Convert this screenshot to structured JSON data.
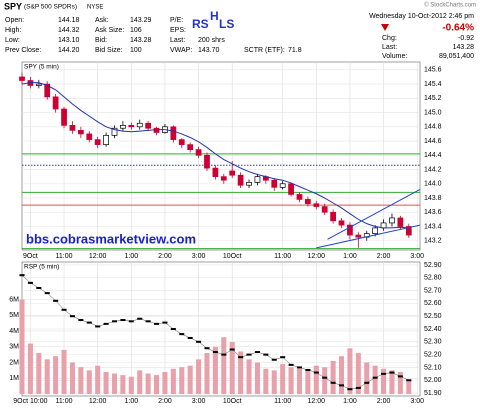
{
  "header": {
    "symbol": "SPY",
    "name": "(S&P 500 SPDRs)",
    "exchange": "NYSE",
    "columns": [
      [
        {
          "label": "Open:",
          "value": "144.18"
        },
        {
          "label": "High:",
          "value": "144.32"
        },
        {
          "label": "Low:",
          "value": "143.10"
        },
        {
          "label": "Prev Close:",
          "value": "144.20"
        }
      ],
      [
        {
          "label": "Ask:",
          "value": "143.29"
        },
        {
          "label": "Ask Size:",
          "value": "106"
        },
        {
          "label": "Bid:",
          "value": "143.28"
        },
        {
          "label": "Bid Size:",
          "value": "100"
        }
      ],
      [
        {
          "label": "P/E:"
        },
        {
          "label": "EPS:"
        },
        {
          "label": "Last:",
          "value": "200 shrs"
        },
        {
          "label": "VWAP:",
          "value": "143.70"
        }
      ]
    ],
    "sctr": {
      "label": "SCTR (ETF):",
      "value": "71.8"
    },
    "pattern": [
      "RS",
      "H",
      "LS"
    ],
    "timestamp": "Wednesday 10-Oct-2012 2:46 pm",
    "change_pct": "-0.64%",
    "stats": [
      {
        "label": "Chg:",
        "value": "-0.92"
      },
      {
        "label": "Last:",
        "value": "143.28"
      },
      {
        "label": "Volume:",
        "value": "89,051,400"
      }
    ],
    "copyright": "© StockCharts.com"
  },
  "chart_data": [
    {
      "type": "candlestick",
      "title": "SPY (5 min)",
      "annotation": "bbs.cobrasmarketview.com",
      "up_color": "#000000",
      "down_color": "#cc0033",
      "grid": true,
      "x": [
        3,
        6,
        9,
        12,
        15,
        18,
        21,
        24,
        27,
        30,
        33,
        36,
        39,
        42,
        45,
        48,
        51,
        54,
        57,
        60,
        63,
        66,
        69,
        72,
        75,
        78,
        81,
        84,
        87,
        90,
        93,
        96,
        99,
        102,
        105,
        108,
        111,
        114,
        117,
        120,
        123,
        126,
        129,
        132,
        135,
        138,
        141
      ],
      "open": [
        145.5,
        145.45,
        145.38,
        145.4,
        145.22,
        145.05,
        144.82,
        144.75,
        144.7,
        144.62,
        144.55,
        144.68,
        144.78,
        144.82,
        144.8,
        144.85,
        144.78,
        144.72,
        144.8,
        144.62,
        144.55,
        144.48,
        144.4,
        144.22,
        144.1,
        144.18,
        144.12,
        143.98,
        144.02,
        144.1,
        144.05,
        143.95,
        144.0,
        143.85,
        143.78,
        143.72,
        143.68,
        143.6,
        143.48,
        143.42,
        143.28,
        143.25,
        143.3,
        143.38,
        143.45,
        143.52,
        143.4
      ],
      "high": [
        145.56,
        145.5,
        145.46,
        145.44,
        145.26,
        145.08,
        144.88,
        144.8,
        144.74,
        144.66,
        144.72,
        144.82,
        144.88,
        144.86,
        144.9,
        144.88,
        144.8,
        144.84,
        144.82,
        144.64,
        144.58,
        144.52,
        144.44,
        144.26,
        144.14,
        144.32,
        144.16,
        144.06,
        144.14,
        144.12,
        144.08,
        144.04,
        144.02,
        143.88,
        143.82,
        143.76,
        143.72,
        143.64,
        143.52,
        143.46,
        143.32,
        143.34,
        143.42,
        143.5,
        143.58,
        143.55,
        143.44
      ],
      "low": [
        145.4,
        145.34,
        145.34,
        145.18,
        145.0,
        144.78,
        144.7,
        144.64,
        144.58,
        144.5,
        144.52,
        144.64,
        144.74,
        144.76,
        144.76,
        144.74,
        144.68,
        144.7,
        144.58,
        144.5,
        144.44,
        144.36,
        144.18,
        144.06,
        144.0,
        144.08,
        143.94,
        143.94,
        143.98,
        144.0,
        143.9,
        143.92,
        143.82,
        143.74,
        143.68,
        143.64,
        143.56,
        143.44,
        143.38,
        143.22,
        143.1,
        143.2,
        143.26,
        143.34,
        143.4,
        143.36,
        143.24
      ],
      "close": [
        145.45,
        145.38,
        145.4,
        145.22,
        145.05,
        144.82,
        144.75,
        144.7,
        144.62,
        144.55,
        144.68,
        144.78,
        144.82,
        144.8,
        144.85,
        144.78,
        144.72,
        144.8,
        144.62,
        144.55,
        144.48,
        144.4,
        144.22,
        144.1,
        144.05,
        144.12,
        143.98,
        144.02,
        144.1,
        144.05,
        143.95,
        144.0,
        143.85,
        143.78,
        143.72,
        143.68,
        143.6,
        143.48,
        143.42,
        143.28,
        143.25,
        143.3,
        143.38,
        143.45,
        143.52,
        143.4,
        143.28
      ],
      "series": [
        {
          "color": "#2233aa",
          "values": [
            145.4,
            145.42,
            145.42,
            145.38,
            145.32,
            145.22,
            145.12,
            145.03,
            144.95,
            144.87,
            144.8,
            144.76,
            144.74,
            144.73,
            144.74,
            144.75,
            144.76,
            144.76,
            144.74,
            144.7,
            144.65,
            144.59,
            144.51,
            144.42,
            144.34,
            144.28,
            144.22,
            144.17,
            144.13,
            144.1,
            144.07,
            144.05,
            144.01,
            143.96,
            143.91,
            143.86,
            143.8,
            143.73,
            143.66,
            143.58,
            143.5,
            143.44,
            143.4,
            143.38,
            143.38,
            143.39,
            143.38
          ]
        }
      ],
      "levels": [
        {
          "value": 144.42,
          "color": "#33aa33"
        },
        {
          "value": 144.26,
          "color": "#334488",
          "style": "dotted"
        },
        {
          "value": 143.88,
          "color": "#33aa33"
        },
        {
          "value": 143.7,
          "color": "#e05050"
        },
        {
          "value": 143.09,
          "color": "#33aa33"
        }
      ],
      "trendlines": [
        {
          "color": "#2244cc",
          "x": [
            112,
            145
          ],
          "y": [
            143.22,
            143.92
          ]
        },
        {
          "color": "#2244cc",
          "x": [
            108,
            145
          ],
          "y": [
            143.1,
            143.42
          ]
        }
      ],
      "xlim": [
        3,
        145
      ],
      "ylim": [
        143.07,
        145.71
      ],
      "xticks": [
        {
          "value": 6,
          "label": "9Oct"
        },
        {
          "value": 18,
          "label": "11:00"
        },
        {
          "value": 30,
          "label": "12:00"
        },
        {
          "value": 42,
          "label": "1:00"
        },
        {
          "value": 54,
          "label": "2:00"
        },
        {
          "value": 66,
          "label": "3:00"
        },
        {
          "value": 78,
          "label": "10Oct"
        },
        {
          "value": 96,
          "label": "11:00"
        },
        {
          "value": 108,
          "label": "12:00"
        },
        {
          "value": 120,
          "label": "1:00"
        },
        {
          "value": 132,
          "label": "2:00"
        },
        {
          "value": 144,
          "label": "3:00"
        }
      ],
      "yticks": [
        143.2,
        143.4,
        143.6,
        143.8,
        {
          "value": 144,
          "label": "144.0"
        },
        144.2,
        144.4,
        144.6,
        144.8,
        {
          "value": 145,
          "label": "145.0"
        },
        145.2,
        145.4,
        145.6
      ]
    },
    {
      "type": "combo",
      "title": "RSP (5 min)",
      "grid": true,
      "x": [
        3,
        6,
        9,
        12,
        15,
        18,
        21,
        24,
        27,
        30,
        33,
        36,
        39,
        42,
        45,
        48,
        51,
        54,
        57,
        60,
        63,
        66,
        69,
        72,
        75,
        78,
        81,
        84,
        87,
        90,
        93,
        96,
        99,
        102,
        105,
        108,
        111,
        114,
        117,
        120,
        123,
        126,
        129,
        132,
        135,
        138,
        141
      ],
      "series": [
        {
          "color": "#e8a0aa",
          "values": [
            6000000,
            3200000,
            2600000,
            2200000,
            2400000,
            2800000,
            2000000,
            1700000,
            1500000,
            1800000,
            1400000,
            1300000,
            1200000,
            1100000,
            1500000,
            1300000,
            1200000,
            1400000,
            1600000,
            1700000,
            1800000,
            2200000,
            2600000,
            3000000,
            3600000,
            3300000,
            2700000,
            2200000,
            2000000,
            1600000,
            1500000,
            1900000,
            1700000,
            1600000,
            1500000,
            1800000,
            1700000,
            2100000,
            2400000,
            2900000,
            2600000,
            2000000,
            1800000,
            1600000,
            1500000,
            1400000,
            900000
          ]
        },
        {
          "color": "#000000",
          "axis": "y2",
          "values": [
            52.82,
            52.76,
            52.72,
            52.68,
            52.62,
            52.55,
            52.5,
            52.47,
            52.45,
            52.42,
            52.44,
            52.46,
            52.47,
            52.46,
            52.48,
            52.46,
            52.44,
            52.45,
            52.4,
            52.36,
            52.33,
            52.3,
            52.25,
            52.22,
            52.2,
            52.24,
            52.18,
            52.2,
            52.22,
            52.2,
            52.16,
            52.18,
            52.12,
            52.1,
            52.08,
            52.06,
            52.02,
            51.98,
            51.96,
            51.93,
            51.94,
            51.98,
            52.02,
            52.05,
            52.06,
            52.03,
            52.0
          ]
        }
      ],
      "xlim": [
        3,
        145
      ],
      "ylim": [
        -125000,
        8375000
      ],
      "y2lim": [
        51.877,
        52.923
      ],
      "xticks": [
        {
          "value": 6,
          "label": "9Oct 10:00"
        },
        {
          "value": 18,
          "label": "11:00"
        },
        {
          "value": 30,
          "label": "12:00"
        },
        {
          "value": 42,
          "label": "1:00"
        },
        {
          "value": 54,
          "label": "2:00"
        },
        {
          "value": 66,
          "label": "3:00"
        },
        {
          "value": 78,
          "label": "10Oct"
        },
        {
          "value": 96,
          "label": "11:00"
        },
        {
          "value": 108,
          "label": "12:00"
        },
        {
          "value": 120,
          "label": "1:00"
        },
        {
          "value": 132,
          "label": "2:00"
        },
        {
          "value": 144,
          "label": "3:00"
        }
      ],
      "yticks": [
        {
          "value": 1000000,
          "label": "1M"
        },
        {
          "value": 2000000,
          "label": "2M"
        },
        {
          "value": 3000000,
          "label": "3M"
        },
        {
          "value": 4000000,
          "label": "4M"
        },
        {
          "value": 5000000,
          "label": "5M"
        },
        {
          "value": 6000000,
          "label": "6M"
        }
      ],
      "y2ticks": [
        {
          "value": 51.9,
          "label": "51.90"
        },
        {
          "value": 52,
          "label": "52.00"
        },
        {
          "value": 52.1,
          "label": "52.10"
        },
        {
          "value": 52.2,
          "label": "52.20"
        },
        {
          "value": 52.3,
          "label": "52.30"
        },
        {
          "value": 52.4,
          "label": "52.40"
        },
        {
          "value": 52.5,
          "label": "52.50"
        },
        {
          "value": 52.6,
          "label": "52.60"
        },
        {
          "value": 52.7,
          "label": "52.70"
        },
        {
          "value": 52.8,
          "label": "52.80"
        },
        {
          "value": 52.9,
          "label": "52.90"
        }
      ]
    }
  ]
}
